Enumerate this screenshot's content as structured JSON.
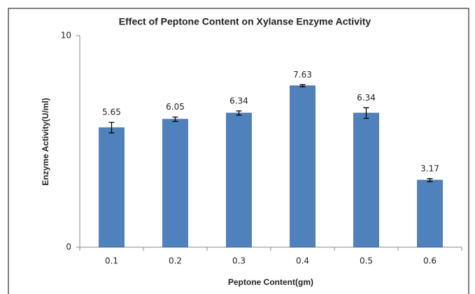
{
  "chart_data": {
    "type": "bar",
    "title": "Effect of Peptone Content on Xylanse Enzyme Activity",
    "x_label": "Peptone Content(gm)",
    "y_label": "Enzyme Activity(U/ml)",
    "categories": [
      "0.1",
      "0.2",
      "0.3",
      "0.4",
      "0.5",
      "0.6"
    ],
    "values": [
      5.65,
      6.05,
      6.34,
      7.63,
      6.34,
      3.17
    ],
    "errors": [
      0.25,
      0.1,
      0.1,
      0.05,
      0.25,
      0.07
    ],
    "color": "#4f81bd",
    "ylim": [
      0,
      10
    ],
    "yticks": [
      0,
      10
    ],
    "grid": false
  }
}
